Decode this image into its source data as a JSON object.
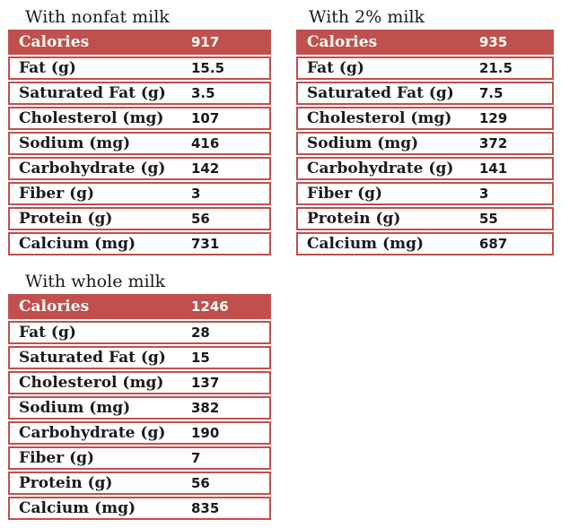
{
  "page": {
    "background": "#ffffff"
  },
  "colors": {
    "accent_red": "#c0504d",
    "row_border": "#c0504d",
    "header_text": "#ffffff",
    "body_text": "#1a1a1a"
  },
  "chart_data": [
    {
      "type": "table",
      "title": "With nonfat milk",
      "header_row": {
        "label": "Calories",
        "value": "917"
      },
      "rows": [
        {
          "label": "Fat (g)",
          "value": "15.5"
        },
        {
          "label": "Saturated Fat (g)",
          "value": "3.5"
        },
        {
          "label": "Cholesterol (mg)",
          "value": "107"
        },
        {
          "label": "Sodium (mg)",
          "value": "416"
        },
        {
          "label": "Carbohydrate (g)",
          "value": "142"
        },
        {
          "label": "Fiber (g)",
          "value": "3"
        },
        {
          "label": "Protein (g)",
          "value": "56"
        },
        {
          "label": "Calcium (mg)",
          "value": "731"
        }
      ]
    },
    {
      "type": "table",
      "title": "With 2% milk",
      "header_row": {
        "label": "Calories",
        "value": "935"
      },
      "rows": [
        {
          "label": "Fat (g)",
          "value": "21.5"
        },
        {
          "label": "Saturated Fat (g)",
          "value": "7.5"
        },
        {
          "label": "Cholesterol (mg)",
          "value": "129"
        },
        {
          "label": "Sodium (mg)",
          "value": "372"
        },
        {
          "label": "Carbohydrate (g)",
          "value": "141"
        },
        {
          "label": "Fiber (g)",
          "value": "3"
        },
        {
          "label": "Protein (g)",
          "value": "55"
        },
        {
          "label": "Calcium (mg)",
          "value": "687"
        }
      ]
    },
    {
      "type": "table",
      "title": "With whole milk",
      "header_row": {
        "label": "Calories",
        "value": "1246"
      },
      "rows": [
        {
          "label": "Fat (g)",
          "value": "28"
        },
        {
          "label": "Saturated Fat (g)",
          "value": "15"
        },
        {
          "label": "Cholesterol (mg)",
          "value": "137"
        },
        {
          "label": "Sodium (mg)",
          "value": "382"
        },
        {
          "label": "Carbohydrate (g)",
          "value": "190"
        },
        {
          "label": "Fiber (g)",
          "value": "7"
        },
        {
          "label": "Protein (g)",
          "value": "56"
        },
        {
          "label": "Calcium (mg)",
          "value": "835"
        }
      ]
    }
  ]
}
